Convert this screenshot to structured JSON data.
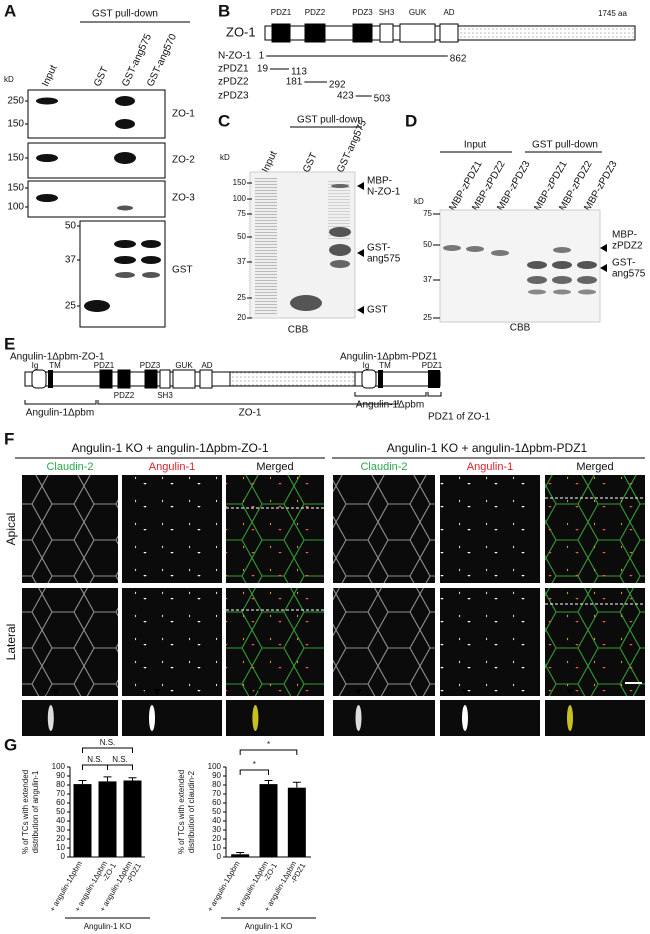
{
  "figure": {
    "A": {
      "letter": "A",
      "header": "GST pull-down",
      "kd_unit": "kD",
      "lanes": [
        "Input",
        "GST",
        "GST-ang575",
        "GST-ang570"
      ],
      "blots": [
        {
          "label": "ZO-1",
          "markers": [
            250,
            150
          ]
        },
        {
          "label": "ZO-2",
          "markers": [
            150
          ]
        },
        {
          "label": "ZO-3",
          "markers": [
            150,
            100
          ]
        },
        {
          "label": "GST",
          "markers": [
            50,
            37,
            25
          ]
        }
      ]
    },
    "B": {
      "letter": "B",
      "protein": "ZO-1",
      "length": 1745,
      "length_unit": "aa",
      "domains": [
        "PDZ1",
        "PDZ2",
        "PDZ3",
        "SH3",
        "GUK",
        "AD"
      ],
      "constructs": [
        {
          "name": "N-ZO-1",
          "start": 1,
          "end": 862
        },
        {
          "name": "zPDZ1",
          "start": 19,
          "end": 113
        },
        {
          "name": "zPDZ2",
          "start": 181,
          "end": 292
        },
        {
          "name": "zPDZ3",
          "start": 423,
          "end": 503
        }
      ]
    },
    "C": {
      "letter": "C",
      "header": "GST pull-down",
      "kd_unit": "kD",
      "lanes": [
        "Input",
        "GST",
        "GST-ang575"
      ],
      "markers": [
        150,
        100,
        75,
        50,
        37,
        25,
        20
      ],
      "band_labels": [
        [
          "MBP-",
          "N-ZO-1"
        ],
        [
          "GST-",
          "ang575"
        ],
        [
          "GST"
        ]
      ],
      "stain": "CBB"
    },
    "D": {
      "letter": "D",
      "input_header": "Input",
      "pulldown_header": "GST pull-down",
      "kd_unit": "kD",
      "lanes": [
        "MBP-zPDZ1",
        "MBP-zPDZ2",
        "MBP-zPDZ3",
        "MBP-zPDZ1",
        "MBP-zPDZ2",
        "MBP-zPDZ3"
      ],
      "markers": [
        75,
        50,
        37,
        25
      ],
      "band_labels": [
        [
          "MBP-",
          "zPDZ2"
        ],
        [
          "GST-",
          "ang575"
        ]
      ],
      "stain": "CBB"
    },
    "E": {
      "letter": "E",
      "constructs": [
        {
          "title": "Angulin-1Δpbm-ZO-1",
          "top_labels": [
            "Ig",
            "TM",
            "PDZ1",
            "PDZ3",
            "GUK",
            "AD"
          ],
          "bottom_labels": [
            "PDZ2",
            "SH3"
          ],
          "segments": [
            "Angulin-1Δpbm",
            "ZO-1"
          ]
        },
        {
          "title": "Angulin-1Δpbm-PDZ1",
          "top_labels": [
            "Ig",
            "TM",
            "PDZ1"
          ],
          "bottom_labels": [],
          "segments": [
            "Angulin-1Δpbm",
            "PDZ1 of ZO-1"
          ]
        }
      ]
    },
    "F": {
      "letter": "F",
      "groups": [
        {
          "title": "Angulin-1 KO + angulin-1Δpbm-ZO-1",
          "channels": [
            "Claudin-2",
            "Angulin-1",
            "Merged"
          ]
        },
        {
          "title": "Angulin-1 KO + angulin-1Δpbm-PDZ1",
          "channels": [
            "Claudin-2",
            "Angulin-1",
            "Merged"
          ]
        }
      ],
      "rows": [
        "Apical",
        "Lateral"
      ]
    },
    "G": {
      "letter": "G"
    }
  },
  "chart_data": [
    {
      "type": "bar",
      "ylabel": [
        "% of TCs with extended",
        "distribution of angulin-1"
      ],
      "ylim": [
        0,
        100
      ],
      "yticks": [
        0,
        10,
        20,
        30,
        40,
        50,
        60,
        70,
        80,
        90,
        100
      ],
      "categories": [
        [
          "+ angulin-1Δpbm"
        ],
        [
          "+ angulin-1Δpbm",
          "-ZO-1"
        ],
        [
          "+ angulin-1Δpbm",
          "-PDZ1"
        ]
      ],
      "values": [
        81,
        84,
        85
      ],
      "errors": [
        4,
        5,
        3
      ],
      "color": "#000000",
      "annotations": [
        "N.S.",
        "N.S.",
        "N.S."
      ],
      "group_label": "Angulin-1 KO"
    },
    {
      "type": "bar",
      "ylabel": [
        "% of TCs with extended",
        "distribution of claudin-2"
      ],
      "ylim": [
        0,
        100
      ],
      "yticks": [
        0,
        10,
        20,
        30,
        40,
        50,
        60,
        70,
        80,
        90,
        100
      ],
      "categories": [
        [
          "+ angulin-1Δpbm"
        ],
        [
          "+ angulin-1Δpbm",
          "-ZO-1"
        ],
        [
          "+ angulin-1Δpbm",
          "-PDZ1"
        ]
      ],
      "values": [
        3,
        81,
        77
      ],
      "errors": [
        2,
        4,
        6
      ],
      "color": "#000000",
      "annotations": [
        "*",
        "*"
      ],
      "group_label": "Angulin-1 KO"
    }
  ]
}
